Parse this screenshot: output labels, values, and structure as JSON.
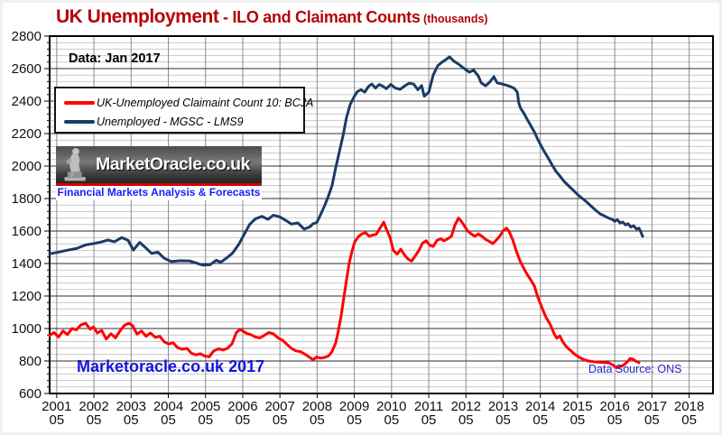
{
  "title": {
    "main": "UK Unemployment",
    "sub": " - ILO and Claimant Counts",
    "unit": " (thousands)"
  },
  "annotations": {
    "data_date": "Data: Jan 2017",
    "watermark": "Marketoracle.co.uk 2017",
    "source": "Data Source: ONS"
  },
  "logo": {
    "title": "MarketOracle.co.uk",
    "tagline": "Financial Markets Analysis & Forecasts"
  },
  "colors": {
    "title": "#b40404",
    "watermark": "#1414e0",
    "source": "#2525cc",
    "tagline": "#1a1aff",
    "logo_stripe": "#d40000",
    "grid_minor": "#c9c9c9",
    "grid_major": "#2e2e2e",
    "grid_vertical": "#8c8c8c",
    "frame": "#000000",
    "axis_text": "#111111"
  },
  "chart_data": {
    "type": "line",
    "title": "UK Unemployment - ILO and Claimant Counts (thousands)",
    "xlabel": "",
    "ylabel": "",
    "grid": true,
    "legend_position": "top-left",
    "x_axis": {
      "range": [
        2001.14,
        2018.97
      ],
      "tick_years": [
        "2001",
        "2002",
        "2003",
        "2004",
        "2005",
        "2006",
        "2007",
        "2008",
        "2009",
        "2010",
        "2011",
        "2012",
        "2013",
        "2014",
        "2015",
        "2016",
        "2017",
        "2018"
      ],
      "tick_month_offset": 0.33,
      "tick_label_line2": "05"
    },
    "y_axis": {
      "min": 600,
      "max": 2800,
      "major_step": 200,
      "minor_step": 40,
      "tick_labels": [
        "2800",
        "2600",
        "2400",
        "2200",
        "2000",
        "1800",
        "1600",
        "1400",
        "1200",
        "1000",
        "800",
        "600"
      ]
    },
    "series": [
      {
        "id": "claimant",
        "name": "UK-Unemployed Claimaint Count 10: BCJA",
        "color": "#ff0000",
        "points": [
          [
            2001.14,
            958
          ],
          [
            2001.26,
            975
          ],
          [
            2001.38,
            948
          ],
          [
            2001.5,
            985
          ],
          [
            2001.62,
            962
          ],
          [
            2001.74,
            1000
          ],
          [
            2001.86,
            992
          ],
          [
            2001.98,
            1022
          ],
          [
            2002.11,
            1032
          ],
          [
            2002.23,
            995
          ],
          [
            2002.32,
            1010
          ],
          [
            2002.42,
            972
          ],
          [
            2002.54,
            988
          ],
          [
            2002.66,
            935
          ],
          [
            2002.79,
            968
          ],
          [
            2002.91,
            942
          ],
          [
            2003.03,
            985
          ],
          [
            2003.15,
            1020
          ],
          [
            2003.27,
            1032
          ],
          [
            2003.37,
            1018
          ],
          [
            2003.49,
            965
          ],
          [
            2003.61,
            985
          ],
          [
            2003.73,
            952
          ],
          [
            2003.85,
            972
          ],
          [
            2003.98,
            945
          ],
          [
            2004.1,
            952
          ],
          [
            2004.22,
            918
          ],
          [
            2004.34,
            905
          ],
          [
            2004.46,
            912
          ],
          [
            2004.58,
            882
          ],
          [
            2004.7,
            872
          ],
          [
            2004.83,
            878
          ],
          [
            2004.95,
            848
          ],
          [
            2005.07,
            838
          ],
          [
            2005.19,
            845
          ],
          [
            2005.31,
            830
          ],
          [
            2005.43,
            826
          ],
          [
            2005.55,
            862
          ],
          [
            2005.68,
            875
          ],
          [
            2005.8,
            868
          ],
          [
            2005.92,
            878
          ],
          [
            2006.04,
            905
          ],
          [
            2006.16,
            975
          ],
          [
            2006.26,
            995
          ],
          [
            2006.35,
            982
          ],
          [
            2006.45,
            968
          ],
          [
            2006.55,
            962
          ],
          [
            2006.67,
            948
          ],
          [
            2006.79,
            942
          ],
          [
            2006.91,
            958
          ],
          [
            2007.03,
            975
          ],
          [
            2007.15,
            968
          ],
          [
            2007.28,
            942
          ],
          [
            2007.4,
            928
          ],
          [
            2007.52,
            902
          ],
          [
            2007.64,
            878
          ],
          [
            2007.76,
            862
          ],
          [
            2007.88,
            858
          ],
          [
            2008.0,
            842
          ],
          [
            2008.13,
            822
          ],
          [
            2008.22,
            808
          ],
          [
            2008.32,
            825
          ],
          [
            2008.42,
            818
          ],
          [
            2008.54,
            822
          ],
          [
            2008.64,
            832
          ],
          [
            2008.73,
            858
          ],
          [
            2008.83,
            912
          ],
          [
            2008.9,
            985
          ],
          [
            2008.98,
            1085
          ],
          [
            2009.05,
            1195
          ],
          [
            2009.12,
            1300
          ],
          [
            2009.19,
            1400
          ],
          [
            2009.27,
            1478
          ],
          [
            2009.34,
            1532
          ],
          [
            2009.44,
            1565
          ],
          [
            2009.53,
            1582
          ],
          [
            2009.63,
            1590
          ],
          [
            2009.73,
            1568
          ],
          [
            2009.82,
            1575
          ],
          [
            2009.92,
            1580
          ],
          [
            2010.02,
            1618
          ],
          [
            2010.12,
            1655
          ],
          [
            2010.19,
            1612
          ],
          [
            2010.29,
            1560
          ],
          [
            2010.38,
            1480
          ],
          [
            2010.48,
            1458
          ],
          [
            2010.58,
            1488
          ],
          [
            2010.68,
            1452
          ],
          [
            2010.77,
            1428
          ],
          [
            2010.87,
            1415
          ],
          [
            2010.97,
            1448
          ],
          [
            2011.07,
            1482
          ],
          [
            2011.16,
            1525
          ],
          [
            2011.26,
            1540
          ],
          [
            2011.36,
            1512
          ],
          [
            2011.45,
            1505
          ],
          [
            2011.55,
            1542
          ],
          [
            2011.65,
            1552
          ],
          [
            2011.74,
            1540
          ],
          [
            2011.84,
            1552
          ],
          [
            2011.94,
            1568
          ],
          [
            2012.03,
            1635
          ],
          [
            2012.13,
            1680
          ],
          [
            2012.2,
            1662
          ],
          [
            2012.28,
            1635
          ],
          [
            2012.37,
            1602
          ],
          [
            2012.47,
            1582
          ],
          [
            2012.57,
            1568
          ],
          [
            2012.66,
            1582
          ],
          [
            2012.76,
            1568
          ],
          [
            2012.86,
            1548
          ],
          [
            2012.95,
            1538
          ],
          [
            2013.05,
            1522
          ],
          [
            2013.15,
            1545
          ],
          [
            2013.25,
            1572
          ],
          [
            2013.34,
            1605
          ],
          [
            2013.42,
            1618
          ],
          [
            2013.49,
            1598
          ],
          [
            2013.59,
            1545
          ],
          [
            2013.68,
            1480
          ],
          [
            2013.78,
            1418
          ],
          [
            2013.88,
            1372
          ],
          [
            2013.97,
            1335
          ],
          [
            2014.07,
            1300
          ],
          [
            2014.17,
            1262
          ],
          [
            2014.26,
            1195
          ],
          [
            2014.36,
            1135
          ],
          [
            2014.48,
            1070
          ],
          [
            2014.6,
            1022
          ],
          [
            2014.7,
            968
          ],
          [
            2014.77,
            940
          ],
          [
            2014.85,
            955
          ],
          [
            2014.94,
            915
          ],
          [
            2015.04,
            885
          ],
          [
            2015.14,
            865
          ],
          [
            2015.26,
            840
          ],
          [
            2015.38,
            822
          ],
          [
            2015.5,
            808
          ],
          [
            2015.62,
            800
          ],
          [
            2015.77,
            795
          ],
          [
            2015.92,
            792
          ],
          [
            2016.06,
            790
          ],
          [
            2016.18,
            788
          ],
          [
            2016.28,
            775
          ],
          [
            2016.38,
            758
          ],
          [
            2016.47,
            765
          ],
          [
            2016.57,
            775
          ],
          [
            2016.67,
            795
          ],
          [
            2016.74,
            815
          ],
          [
            2016.81,
            812
          ],
          [
            2016.89,
            800
          ],
          [
            2016.98,
            790
          ]
        ]
      },
      {
        "id": "ilo",
        "name": "Unemployed - MGSC - LMS9",
        "color": "#1b3a66",
        "points": [
          [
            2001.14,
            1460
          ],
          [
            2001.33,
            1468
          ],
          [
            2001.62,
            1482
          ],
          [
            2001.86,
            1492
          ],
          [
            2002.11,
            1515
          ],
          [
            2002.35,
            1524
          ],
          [
            2002.52,
            1532
          ],
          [
            2002.71,
            1545
          ],
          [
            2002.88,
            1534
          ],
          [
            2003.08,
            1560
          ],
          [
            2003.25,
            1542
          ],
          [
            2003.39,
            1483
          ],
          [
            2003.56,
            1530
          ],
          [
            2003.73,
            1495
          ],
          [
            2003.88,
            1462
          ],
          [
            2004.05,
            1470
          ],
          [
            2004.22,
            1432
          ],
          [
            2004.41,
            1412
          ],
          [
            2004.66,
            1417
          ],
          [
            2004.9,
            1416
          ],
          [
            2005.09,
            1402
          ],
          [
            2005.26,
            1390
          ],
          [
            2005.45,
            1392
          ],
          [
            2005.62,
            1420
          ],
          [
            2005.74,
            1408
          ],
          [
            2005.91,
            1436
          ],
          [
            2006.06,
            1465
          ],
          [
            2006.23,
            1520
          ],
          [
            2006.37,
            1580
          ],
          [
            2006.52,
            1642
          ],
          [
            2006.67,
            1675
          ],
          [
            2006.84,
            1690
          ],
          [
            2007.01,
            1672
          ],
          [
            2007.15,
            1697
          ],
          [
            2007.32,
            1688
          ],
          [
            2007.49,
            1665
          ],
          [
            2007.64,
            1643
          ],
          [
            2007.81,
            1650
          ],
          [
            2007.98,
            1612
          ],
          [
            2008.13,
            1625
          ],
          [
            2008.22,
            1645
          ],
          [
            2008.32,
            1652
          ],
          [
            2008.42,
            1700
          ],
          [
            2008.54,
            1760
          ],
          [
            2008.64,
            1820
          ],
          [
            2008.73,
            1880
          ],
          [
            2008.83,
            1990
          ],
          [
            2008.93,
            2090
          ],
          [
            2009.03,
            2190
          ],
          [
            2009.12,
            2300
          ],
          [
            2009.22,
            2380
          ],
          [
            2009.32,
            2425
          ],
          [
            2009.41,
            2458
          ],
          [
            2009.51,
            2470
          ],
          [
            2009.61,
            2455
          ],
          [
            2009.71,
            2490
          ],
          [
            2009.8,
            2505
          ],
          [
            2009.9,
            2480
          ],
          [
            2010.0,
            2502
          ],
          [
            2010.09,
            2492
          ],
          [
            2010.19,
            2476
          ],
          [
            2010.31,
            2502
          ],
          [
            2010.43,
            2480
          ],
          [
            2010.56,
            2472
          ],
          [
            2010.68,
            2492
          ],
          [
            2010.8,
            2510
          ],
          [
            2010.92,
            2505
          ],
          [
            2011.04,
            2470
          ],
          [
            2011.14,
            2495
          ],
          [
            2011.21,
            2430
          ],
          [
            2011.33,
            2455
          ],
          [
            2011.45,
            2560
          ],
          [
            2011.57,
            2617
          ],
          [
            2011.69,
            2640
          ],
          [
            2011.79,
            2655
          ],
          [
            2011.89,
            2672
          ],
          [
            2012.01,
            2645
          ],
          [
            2012.13,
            2628
          ],
          [
            2012.25,
            2606
          ],
          [
            2012.42,
            2578
          ],
          [
            2012.54,
            2590
          ],
          [
            2012.66,
            2555
          ],
          [
            2012.74,
            2512
          ],
          [
            2012.86,
            2494
          ],
          [
            2012.98,
            2520
          ],
          [
            2013.08,
            2550
          ],
          [
            2013.17,
            2512
          ],
          [
            2013.3,
            2505
          ],
          [
            2013.42,
            2498
          ],
          [
            2013.54,
            2488
          ],
          [
            2013.63,
            2478
          ],
          [
            2013.71,
            2455
          ],
          [
            2013.75,
            2390
          ],
          [
            2013.8,
            2355
          ],
          [
            2013.88,
            2328
          ],
          [
            2013.97,
            2290
          ],
          [
            2014.07,
            2250
          ],
          [
            2014.17,
            2210
          ],
          [
            2014.26,
            2165
          ],
          [
            2014.36,
            2120
          ],
          [
            2014.46,
            2080
          ],
          [
            2014.56,
            2042
          ],
          [
            2014.65,
            2005
          ],
          [
            2014.75,
            1968
          ],
          [
            2014.85,
            1940
          ],
          [
            2014.97,
            1905
          ],
          [
            2015.09,
            1878
          ],
          [
            2015.21,
            1852
          ],
          [
            2015.33,
            1825
          ],
          [
            2015.45,
            1802
          ],
          [
            2015.58,
            1778
          ],
          [
            2015.7,
            1752
          ],
          [
            2015.82,
            1728
          ],
          [
            2015.94,
            1705
          ],
          [
            2016.06,
            1692
          ],
          [
            2016.16,
            1680
          ],
          [
            2016.26,
            1672
          ],
          [
            2016.33,
            1660
          ],
          [
            2016.4,
            1670
          ],
          [
            2016.47,
            1650
          ],
          [
            2016.55,
            1655
          ],
          [
            2016.62,
            1638
          ],
          [
            2016.69,
            1645
          ],
          [
            2016.76,
            1625
          ],
          [
            2016.84,
            1632
          ],
          [
            2016.91,
            1612
          ],
          [
            2016.98,
            1618
          ],
          [
            2017.03,
            1595
          ],
          [
            2017.08,
            1567
          ]
        ]
      }
    ]
  }
}
